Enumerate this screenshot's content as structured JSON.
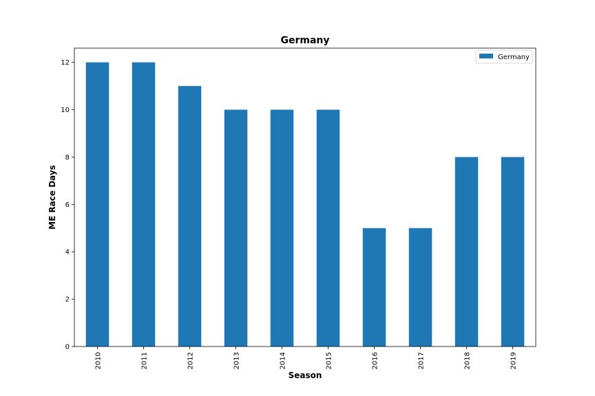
{
  "chart_data": {
    "type": "bar",
    "title": "Germany",
    "xlabel": "Season",
    "ylabel": "ME Race Days",
    "categories": [
      "2010",
      "2011",
      "2012",
      "2013",
      "2014",
      "2015",
      "2016",
      "2017",
      "2018",
      "2019"
    ],
    "series": [
      {
        "name": "Germany",
        "color": "#1f77b4",
        "values": [
          12,
          12,
          11,
          10,
          10,
          10,
          5,
          5,
          8,
          8
        ]
      }
    ],
    "ylim": [
      0,
      12.6
    ],
    "yticks": [
      "0",
      "2",
      "4",
      "6",
      "8",
      "10",
      "12"
    ],
    "grid": false,
    "legend_position": "top-right"
  }
}
